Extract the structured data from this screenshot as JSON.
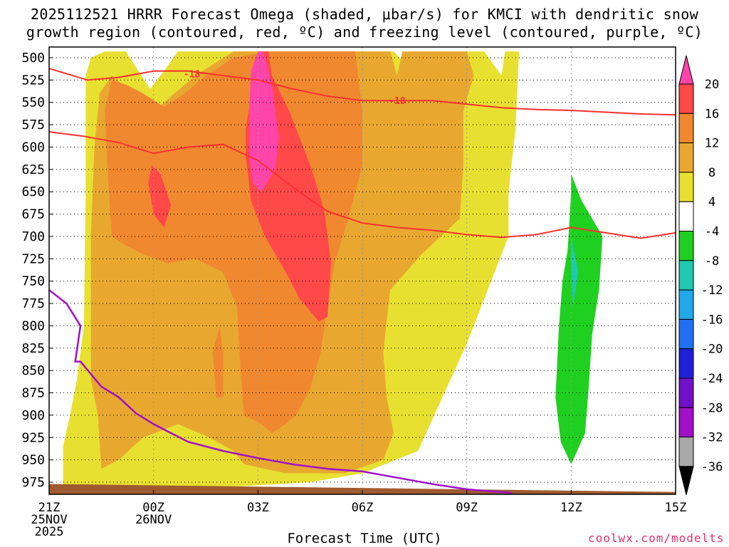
{
  "title_line1": "2025112521 HRRR Forecast Omega (shaded, μbar/s) for KMCI with dendritic snow",
  "title_line2": "growth region (contoured, red, ºC) and freezing level (contoured, purple, ºC)",
  "credit": "coolwx.com/modelts",
  "chart_data": {
    "type": "heatmap",
    "title": "2025112521 HRRR Forecast Omega (shaded, μbar/s) for KMCI with dendritic snow growth region (contoured, red, ºC) and freezing level (contoured, purple, ºC)",
    "xlabel": "Forecast Time (UTC)",
    "ylabel": "",
    "x_unit": "hours since 21Z 25NOV 2025",
    "xlim": [
      0,
      18
    ],
    "ylim": [
      983,
      493
    ],
    "x_ticks": [
      {
        "x": 0,
        "label": "21Z",
        "sub": [
          "25NOV",
          "2025"
        ]
      },
      {
        "x": 3,
        "label": "00Z",
        "sub": [
          "26NOV"
        ]
      },
      {
        "x": 6,
        "label": "03Z",
        "sub": []
      },
      {
        "x": 9,
        "label": "06Z",
        "sub": []
      },
      {
        "x": 12,
        "label": "09Z",
        "sub": []
      },
      {
        "x": 15,
        "label": "12Z",
        "sub": []
      },
      {
        "x": 18,
        "label": "15Z",
        "sub": []
      }
    ],
    "y_ticks": [
      500,
      525,
      550,
      575,
      600,
      625,
      650,
      675,
      700,
      725,
      750,
      775,
      800,
      825,
      850,
      875,
      900,
      925,
      950,
      975
    ],
    "grid": true,
    "colorbar": {
      "labels": [
        "20",
        "16",
        "12",
        "8",
        "4",
        "-4",
        "-8",
        "-12",
        "-16",
        "-20",
        "-24",
        "-28",
        "-32",
        "-36"
      ],
      "colors": [
        "#ff44aa",
        "#ff4848",
        "#f08830",
        "#e8a830",
        "#e8e030",
        "#ffffff",
        "#20d020",
        "#20c8b0",
        "#20a8e8",
        "#2070f0",
        "#2020d8",
        "#7010c8",
        "#a010c8",
        "#a8a8a8",
        "#000000"
      ]
    },
    "omega_levels": [
      {
        "value": 4,
        "color": "#e8e030",
        "polygons": [
          [
            [
              0.4,
              983
            ],
            [
              0.4,
              935
            ],
            [
              0.6,
              900
            ],
            [
              0.8,
              860
            ],
            [
              1,
              800
            ],
            [
              1.05,
              650
            ],
            [
              1.05,
              520
            ],
            [
              1.2,
              500
            ],
            [
              1.6,
              493
            ],
            [
              1.8,
              493
            ],
            [
              2.2,
              493
            ],
            [
              2.9,
              535
            ],
            [
              3.3,
              515
            ],
            [
              3.7,
              493
            ],
            [
              9.5,
              493
            ],
            [
              9.9,
              493
            ],
            [
              10.2,
              505
            ],
            [
              10.3,
              520
            ],
            [
              10.4,
              493
            ],
            [
              12.2,
              493
            ],
            [
              12.5,
              493
            ],
            [
              13,
              520
            ],
            [
              13.1,
              493
            ],
            [
              13.3,
              493
            ],
            [
              13.5,
              493
            ],
            [
              13.4,
              580
            ],
            [
              13.2,
              650
            ],
            [
              13.2,
              700
            ],
            [
              12.6,
              760
            ],
            [
              12.0,
              820
            ],
            [
              11.3,
              880
            ],
            [
              10.6,
              940
            ],
            [
              9.0,
              965
            ],
            [
              7.5,
              975
            ],
            [
              4.0,
              983
            ]
          ]
        ]
      },
      {
        "value": 8,
        "color": "#e8a830",
        "polygons": [
          [
            [
              1.5,
              960
            ],
            [
              1.4,
              900
            ],
            [
              1.2,
              860
            ],
            [
              1.2,
              700
            ],
            [
              1.3,
              600
            ],
            [
              1.45,
              540
            ],
            [
              1.8,
              520
            ],
            [
              2.4,
              540
            ],
            [
              3.0,
              560
            ],
            [
              3.6,
              540
            ],
            [
              4.2,
              520
            ],
            [
              5.3,
              493
            ],
            [
              9.8,
              493
            ],
            [
              10.0,
              520
            ],
            [
              10.15,
              493
            ],
            [
              12.0,
              493
            ],
            [
              12.2,
              520
            ],
            [
              11.9,
              560
            ],
            [
              11.9,
              620
            ],
            [
              11.8,
              680
            ],
            [
              10.7,
              720
            ],
            [
              9.8,
              760
            ],
            [
              9.6,
              830
            ],
            [
              9.7,
              880
            ],
            [
              9.9,
              920
            ],
            [
              9.6,
              950
            ],
            [
              8.5,
              965
            ],
            [
              6.8,
              965
            ],
            [
              5.6,
              955
            ],
            [
              5.3,
              940
            ],
            [
              4.6,
              925
            ],
            [
              3.7,
              910
            ],
            [
              2.7,
              925
            ],
            [
              2.0,
              950
            ]
          ]
        ]
      },
      {
        "value": 12,
        "color": "#f08830",
        "polygons": [
          [
            [
              1.8,
              700
            ],
            [
              1.7,
              640
            ],
            [
              1.6,
              560
            ],
            [
              1.8,
              525
            ],
            [
              2.2,
              530
            ],
            [
              2.7,
              540
            ],
            [
              3.3,
              555
            ],
            [
              3.9,
              540
            ],
            [
              4.5,
              520
            ],
            [
              5.3,
              500
            ],
            [
              6.4,
              493
            ],
            [
              8.8,
              493
            ],
            [
              9.0,
              560
            ],
            [
              9.0,
              620
            ],
            [
              8.6,
              680
            ],
            [
              8.2,
              730
            ],
            [
              8.0,
              780
            ],
            [
              7.8,
              830
            ],
            [
              7.5,
              870
            ],
            [
              7.1,
              900
            ],
            [
              6.8,
              910
            ],
            [
              6.4,
              920
            ],
            [
              6.1,
              910
            ],
            [
              5.6,
              900
            ],
            [
              5.5,
              850
            ],
            [
              5.4,
              780
            ],
            [
              5.0,
              740
            ],
            [
              4.2,
              725
            ],
            [
              3.4,
              730
            ],
            [
              2.7,
              720
            ],
            [
              2.2,
              710
            ]
          ]
        ]
      },
      {
        "value": 12,
        "color": "#f08830",
        "polygons": [
          [
            [
              4.7,
              830
            ],
            [
              4.9,
              800
            ],
            [
              5.0,
              830
            ],
            [
              5.0,
              880
            ],
            [
              4.8,
              880
            ]
          ]
        ]
      },
      {
        "value": 16,
        "color": "#ff4848",
        "polygons": [
          [
            [
              5.65,
              580
            ],
            [
              5.9,
              520
            ],
            [
              6.0,
              493
            ],
            [
              6.3,
              493
            ],
            [
              6.4,
              520
            ],
            [
              6.9,
              560
            ],
            [
              7.5,
              620
            ],
            [
              7.9,
              670
            ],
            [
              8.1,
              730
            ],
            [
              8.0,
              790
            ],
            [
              7.75,
              795
            ],
            [
              7.2,
              770
            ],
            [
              6.8,
              740
            ],
            [
              6.2,
              700
            ],
            [
              5.8,
              660
            ],
            [
              5.65,
              610
            ]
          ]
        ]
      },
      {
        "value": 16,
        "color": "#ff4848",
        "polygons": [
          [
            [
              2.85,
              640
            ],
            [
              2.95,
              620
            ],
            [
              3.2,
              630
            ],
            [
              3.5,
              665
            ],
            [
              3.3,
              690
            ],
            [
              3.0,
              675
            ]
          ]
        ]
      },
      {
        "value": 20,
        "color": "#ff44aa",
        "polygons": [
          [
            [
              5.75,
              560
            ],
            [
              5.8,
              515
            ],
            [
              6.0,
              493
            ],
            [
              6.15,
              493
            ],
            [
              6.4,
              530
            ],
            [
              6.6,
              590
            ],
            [
              6.5,
              625
            ],
            [
              6.1,
              650
            ],
            [
              5.85,
              640
            ],
            [
              5.75,
              610
            ]
          ]
        ]
      },
      {
        "value": -4,
        "color": "#20d020",
        "polygons": [
          [
            [
              14.9,
              715
            ],
            [
              15.0,
              650
            ],
            [
              15.0,
              630
            ],
            [
              15.3,
              660
            ],
            [
              15.9,
              700
            ],
            [
              15.8,
              760
            ],
            [
              15.6,
              810
            ],
            [
              15.5,
              870
            ],
            [
              15.4,
              920
            ],
            [
              15.0,
              955
            ],
            [
              14.7,
              930
            ],
            [
              14.55,
              880
            ],
            [
              14.65,
              800
            ],
            [
              14.75,
              750
            ]
          ]
        ]
      },
      {
        "value": -8,
        "color": "#20c8b0",
        "polygons": [
          [
            [
              15.0,
              730
            ],
            [
              15.0,
              700
            ],
            [
              15.2,
              740
            ],
            [
              15.05,
              780
            ]
          ]
        ]
      }
    ],
    "contours": [
      {
        "name": "dendritic -18 upper",
        "color": "#ff3030",
        "label": "-18",
        "label_x": [
          4.1,
          10.0
        ],
        "label_y": [
          518,
          548
        ],
        "x": [
          0,
          1.1,
          2.0,
          3.0,
          4.0,
          5.0,
          6.0,
          7.0,
          8.0,
          9.0,
          10.0,
          11.0,
          12.0,
          13.0,
          14.0,
          15.0,
          16.0,
          17.0,
          18.0
        ],
        "y": [
          512,
          525,
          522,
          515,
          515,
          520,
          525,
          535,
          543,
          548,
          548,
          548,
          552,
          556,
          558,
          559,
          561,
          563,
          564
        ]
      },
      {
        "name": "dendritic -18 lower",
        "color": "#ff3030",
        "label": "",
        "label_x": [],
        "label_y": [],
        "x": [
          0,
          1.0,
          2.0,
          3.0,
          4.0,
          5.0,
          6.0,
          7.0,
          8.0,
          9.0,
          10.0,
          11.0,
          12.0,
          13.0,
          14.0,
          15.0,
          16.0,
          17.0,
          18.0
        ],
        "y": [
          583,
          588,
          595,
          607,
          600,
          597,
          615,
          645,
          672,
          685,
          690,
          693,
          698,
          701,
          698,
          690,
          696,
          702,
          696
        ]
      },
      {
        "name": "freezing level",
        "color": "#a010c8",
        "label": "",
        "label_x": [],
        "label_y": [],
        "x": [
          0,
          0.5,
          0.9,
          0.75,
          0.9,
          1.5,
          2.0,
          2.5,
          3.0,
          3.5,
          4.0,
          5.0,
          6.0,
          7.0,
          8.0,
          9.0,
          10.0,
          11.0,
          12.0,
          13.3
        ],
        "y": [
          760,
          775,
          800,
          840,
          840,
          868,
          880,
          898,
          910,
          920,
          930,
          940,
          948,
          955,
          960,
          963,
          970,
          977,
          983,
          987
        ]
      }
    ],
    "terrain": {
      "color": "#a05a30",
      "pressure_top_start": 977,
      "pressure_top_end": 986
    }
  }
}
